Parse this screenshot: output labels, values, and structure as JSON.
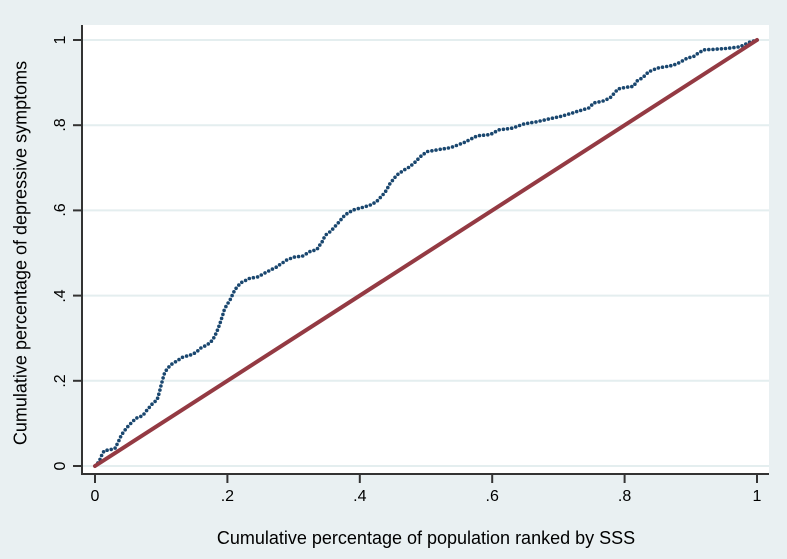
{
  "figure": {
    "colors": {
      "background": "#e9f0f2",
      "plot_background": "#ffffff",
      "gridline": "#e4eeef",
      "axis": "#333333",
      "tick_label": "#000000",
      "curve_dots": "#1a476f",
      "equality_line": "#943a43"
    }
  },
  "chart_data": {
    "type": "scatter",
    "title": "",
    "xlabel": "Cumulative percentage of population ranked by SSS",
    "ylabel": "Cumulative percentage of depressive symptoms",
    "xlim": [
      0,
      1
    ],
    "ylim": [
      0,
      1
    ],
    "grid": "horizontal-only",
    "legend": "none",
    "x_tick_labels": [
      "0",
      ".2",
      ".4",
      ".6",
      ".8",
      "1"
    ],
    "x_tick_values": [
      0,
      0.2,
      0.4,
      0.6,
      0.8,
      1
    ],
    "y_tick_labels": [
      "0",
      ".2",
      ".4",
      ".6",
      ".8",
      "1"
    ],
    "y_tick_values": [
      0,
      0.2,
      0.4,
      0.6,
      0.8,
      1
    ],
    "series": [
      {
        "name": "concentration_curve",
        "type": "scatter",
        "marker": "dot",
        "color": "#1a476f",
        "points": [
          [
            0.0,
            0.0
          ],
          [
            0.006,
            0.01
          ],
          [
            0.01,
            0.025
          ],
          [
            0.014,
            0.036
          ],
          [
            0.022,
            0.038
          ],
          [
            0.03,
            0.041
          ],
          [
            0.035,
            0.056
          ],
          [
            0.04,
            0.073
          ],
          [
            0.048,
            0.09
          ],
          [
            0.056,
            0.103
          ],
          [
            0.062,
            0.112
          ],
          [
            0.072,
            0.118
          ],
          [
            0.078,
            0.13
          ],
          [
            0.086,
            0.145
          ],
          [
            0.094,
            0.156
          ],
          [
            0.097,
            0.172
          ],
          [
            0.1,
            0.19
          ],
          [
            0.104,
            0.214
          ],
          [
            0.108,
            0.226
          ],
          [
            0.114,
            0.237
          ],
          [
            0.122,
            0.245
          ],
          [
            0.132,
            0.255
          ],
          [
            0.143,
            0.26
          ],
          [
            0.152,
            0.266
          ],
          [
            0.16,
            0.277
          ],
          [
            0.17,
            0.285
          ],
          [
            0.178,
            0.296
          ],
          [
            0.184,
            0.315
          ],
          [
            0.19,
            0.34
          ],
          [
            0.196,
            0.37
          ],
          [
            0.204,
            0.39
          ],
          [
            0.211,
            0.413
          ],
          [
            0.22,
            0.43
          ],
          [
            0.233,
            0.44
          ],
          [
            0.246,
            0.444
          ],
          [
            0.26,
            0.456
          ],
          [
            0.274,
            0.467
          ],
          [
            0.289,
            0.483
          ],
          [
            0.3,
            0.49
          ],
          [
            0.314,
            0.493
          ],
          [
            0.324,
            0.503
          ],
          [
            0.335,
            0.508
          ],
          [
            0.343,
            0.526
          ],
          [
            0.348,
            0.542
          ],
          [
            0.356,
            0.551
          ],
          [
            0.367,
            0.57
          ],
          [
            0.378,
            0.59
          ],
          [
            0.39,
            0.601
          ],
          [
            0.402,
            0.606
          ],
          [
            0.415,
            0.612
          ],
          [
            0.425,
            0.62
          ],
          [
            0.432,
            0.632
          ],
          [
            0.438,
            0.642
          ],
          [
            0.446,
            0.664
          ],
          [
            0.456,
            0.683
          ],
          [
            0.466,
            0.694
          ],
          [
            0.476,
            0.703
          ],
          [
            0.484,
            0.714
          ],
          [
            0.494,
            0.73
          ],
          [
            0.502,
            0.738
          ],
          [
            0.52,
            0.743
          ],
          [
            0.536,
            0.747
          ],
          [
            0.547,
            0.753
          ],
          [
            0.56,
            0.761
          ],
          [
            0.577,
            0.775
          ],
          [
            0.597,
            0.778
          ],
          [
            0.61,
            0.789
          ],
          [
            0.63,
            0.793
          ],
          [
            0.648,
            0.803
          ],
          [
            0.667,
            0.808
          ],
          [
            0.687,
            0.815
          ],
          [
            0.707,
            0.822
          ],
          [
            0.728,
            0.832
          ],
          [
            0.747,
            0.841
          ],
          [
            0.753,
            0.852
          ],
          [
            0.768,
            0.857
          ],
          [
            0.778,
            0.864
          ],
          [
            0.79,
            0.885
          ],
          [
            0.802,
            0.889
          ],
          [
            0.813,
            0.891
          ],
          [
            0.82,
            0.906
          ],
          [
            0.827,
            0.911
          ],
          [
            0.836,
            0.925
          ],
          [
            0.849,
            0.934
          ],
          [
            0.864,
            0.938
          ],
          [
            0.874,
            0.941
          ],
          [
            0.884,
            0.948
          ],
          [
            0.895,
            0.958
          ],
          [
            0.904,
            0.961
          ],
          [
            0.912,
            0.97
          ],
          [
            0.92,
            0.977
          ],
          [
            0.935,
            0.978
          ],
          [
            0.944,
            0.979
          ],
          [
            0.959,
            0.981
          ],
          [
            0.974,
            0.984
          ],
          [
            0.989,
            0.995
          ],
          [
            1.0,
            1.0
          ]
        ]
      },
      {
        "name": "line_of_equality",
        "type": "line",
        "color": "#943a43",
        "points": [
          [
            0,
            0
          ],
          [
            1,
            1
          ]
        ]
      }
    ]
  }
}
